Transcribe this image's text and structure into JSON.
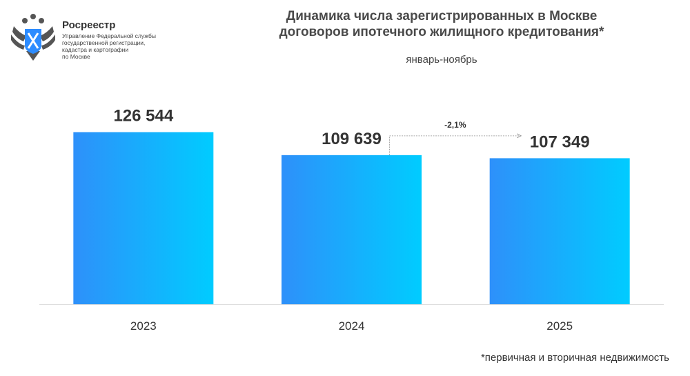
{
  "header": {
    "org_name": "Росреестр",
    "org_subtitle": "Управление Федеральной службы\nгосударственной регистрации,\nкадастра и картографии\nпо Москве",
    "logo_icon": "double-headed-eagle-emblem"
  },
  "chart_data": {
    "type": "bar",
    "title": "Динамика числа зарегистрированных в Москве\nдоговоров ипотечного жилищного кредитования*",
    "subtitle": "январь-ноябрь",
    "categories": [
      "2023",
      "2024",
      "2025"
    ],
    "values": [
      126544,
      109639,
      107349
    ],
    "data_labels": [
      "126 544",
      "109 639",
      "107 349"
    ],
    "ylim": [
      0,
      140000
    ],
    "grid": false,
    "legend": "none",
    "annotation": {
      "text": "-2,1%",
      "from": "2024",
      "to": "2025"
    },
    "colors": {
      "bar_gradient_start": "#2e90fa",
      "bar_gradient_end": "#00ccff",
      "axis": "#dddddd"
    },
    "footnote": "*первичная и вторичная недвижимость"
  }
}
